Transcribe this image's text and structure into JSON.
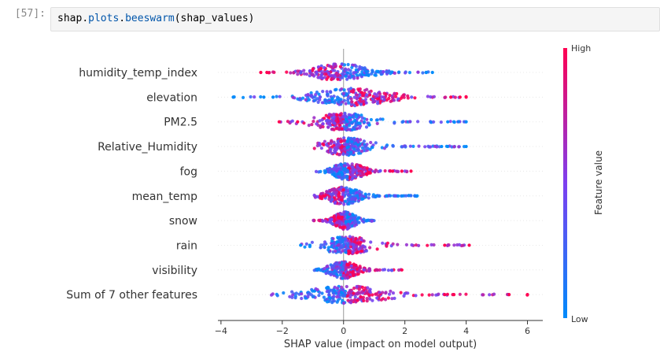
{
  "cell": {
    "prompt": "[57]:",
    "code_object": "shap",
    "code_dot1": ".",
    "code_attr1": "plots",
    "code_dot2": ".",
    "code_attr2": "beeswarm",
    "code_args": "(shap_values)"
  },
  "chart_data": {
    "type": "scatter",
    "subtype": "beeswarm",
    "features": [
      "humidity_temp_index",
      "elevation",
      "PM2.5",
      "Relative_Humidity",
      "fog",
      "mean_temp",
      "snow",
      "rain",
      "visibility",
      "Sum of 7 other features"
    ],
    "xlabel": "SHAP value (impact on model output)",
    "xlim": [
      -4.1,
      6.5
    ],
    "xticks": [
      -4,
      -2,
      0,
      2,
      4,
      6
    ],
    "colorbar": {
      "label": "Feature value",
      "high_label": "High",
      "low_label": "Low",
      "low_color": "#008bfb",
      "high_color": "#ff0051"
    },
    "distributions": [
      {
        "feature": "humidity_temp_index",
        "range": [
          -2.7,
          2.9
        ],
        "core": [
          -1.1,
          0.9
        ],
        "low_side": "right",
        "outliers": [
          -2.7,
          -2.5,
          2.7,
          2.9
        ]
      },
      {
        "feature": "elevation",
        "range": [
          -3.6,
          4.0
        ],
        "core": [
          -0.9,
          1.4
        ],
        "low_side": "left",
        "outliers": [
          -3.6,
          -2.6,
          -2.3,
          3.5,
          3.8,
          4.0
        ]
      },
      {
        "feature": "PM2.5",
        "range": [
          -2.1,
          4.0
        ],
        "core": [
          -0.5,
          0.5
        ],
        "low_side": "right",
        "outliers": [
          -2.1,
          -1.5,
          3.4,
          3.6,
          4.0
        ]
      },
      {
        "feature": "Relative_Humidity",
        "range": [
          -1.1,
          4.0
        ],
        "core": [
          -0.4,
          0.6
        ],
        "low_side": "right",
        "outliers": [
          3.2,
          3.4,
          4.0
        ]
      },
      {
        "feature": "fog",
        "range": [
          -0.9,
          2.2
        ],
        "core": [
          -0.3,
          0.6
        ],
        "low_side": "left",
        "outliers": [
          1.6,
          1.9,
          2.2
        ]
      },
      {
        "feature": "mean_temp",
        "range": [
          -1.0,
          2.4
        ],
        "core": [
          -0.5,
          0.5
        ],
        "low_side": "right",
        "outliers": [
          1.4,
          2.4
        ]
      },
      {
        "feature": "snow",
        "range": [
          -1.0,
          1.2
        ],
        "core": [
          -0.3,
          0.4
        ],
        "low_side": "right",
        "outliers": []
      },
      {
        "feature": "rain",
        "range": [
          -1.4,
          4.1
        ],
        "core": [
          -0.3,
          0.6
        ],
        "low_side": "left",
        "outliers": [
          -1.4,
          -1.1,
          3.3,
          4.1
        ]
      },
      {
        "feature": "visibility",
        "range": [
          -1.0,
          1.9
        ],
        "core": [
          -0.4,
          0.4
        ],
        "low_side": "left",
        "outliers": [
          1.9
        ]
      },
      {
        "feature": "Sum of 7 other features",
        "range": [
          -2.4,
          6.0
        ],
        "core": [
          -1.0,
          1.2
        ],
        "low_side": "left",
        "outliers": [
          3.3,
          3.6,
          5.4,
          6.0
        ]
      }
    ]
  }
}
